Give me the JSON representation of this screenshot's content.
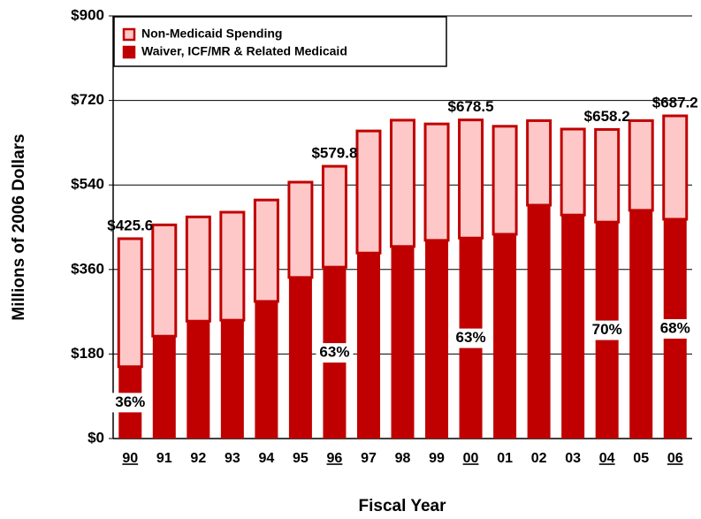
{
  "chart_data": {
    "type": "stacked_bar",
    "y_label": "Millions of 2006 Dollars",
    "x_label": "Fiscal Year",
    "categories": [
      "90",
      "91",
      "92",
      "93",
      "94",
      "95",
      "96",
      "97",
      "98",
      "99",
      "00",
      "01",
      "02",
      "03",
      "04",
      "05",
      "06"
    ],
    "series": [
      {
        "name": "Waiver, ICF/MR & Related Medicaid",
        "color": "#c00000",
        "values": [
          153,
          218,
          250,
          252,
          292,
          343,
          365,
          395,
          409,
          422,
          427,
          435,
          497,
          476,
          461,
          486,
          467
        ]
      },
      {
        "name": "Non-Medicaid Spending",
        "color": "#ffc8c8",
        "values": [
          272.6,
          237,
          222,
          230,
          216,
          203,
          214.8,
          260,
          269,
          248,
          251.5,
          230,
          180,
          183,
          197.2,
          191,
          220.2
        ]
      }
    ],
    "ylim": [
      0,
      900
    ],
    "yticks": [
      {
        "value": 0,
        "label": "$0"
      },
      {
        "value": 180,
        "label": "$180"
      },
      {
        "value": 360,
        "label": "$360"
      },
      {
        "value": 540,
        "label": "$540"
      },
      {
        "value": 720,
        "label": "$720"
      },
      {
        "value": 900,
        "label": "$900"
      }
    ],
    "grid": true,
    "legend": "top-left",
    "total_labels": [
      {
        "category": 0,
        "text": "$425.6",
        "value": 425.6
      },
      {
        "category": 6,
        "text": "$579.8",
        "value": 579.8
      },
      {
        "category": 10,
        "text": "$678.5",
        "value": 678.5
      },
      {
        "category": 14,
        "text": "$658.2",
        "value": 658.2
      },
      {
        "category": 16,
        "text": "$687.2",
        "value": 687.2
      }
    ],
    "share_labels": [
      {
        "category": 0,
        "text": "36%",
        "value": 36
      },
      {
        "category": 6,
        "text": "63%",
        "value": 63
      },
      {
        "category": 10,
        "text": "63%",
        "value": 63
      },
      {
        "category": 14,
        "text": "70%",
        "value": 70
      },
      {
        "category": 16,
        "text": "68%",
        "value": 68
      }
    ]
  }
}
